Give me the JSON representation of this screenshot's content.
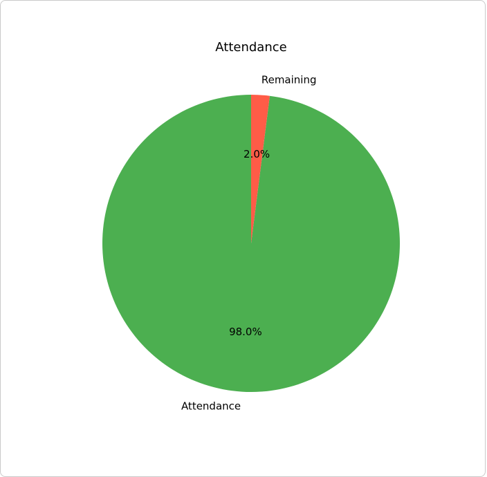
{
  "chart_data": {
    "type": "pie",
    "title": "Attendance",
    "labels": [
      "Attendance",
      "Remaining"
    ],
    "values": [
      98.0,
      2.0
    ],
    "colors": [
      "#4caf50",
      "#ff5c47"
    ],
    "autopct_labels": [
      "98.0%",
      "2.0%"
    ],
    "start_angle_deg": 90,
    "direction": "counterclockwise"
  }
}
